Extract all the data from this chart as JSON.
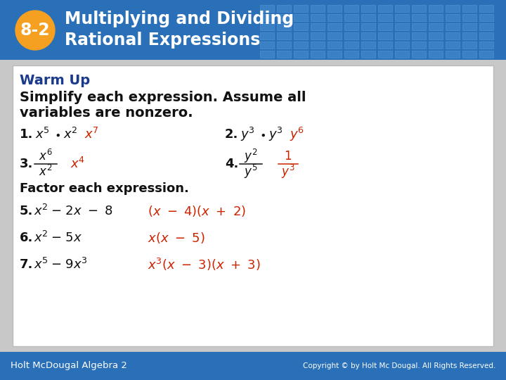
{
  "title_number": "8-2",
  "title_line1": "Multiplying and Dividing",
  "title_line2": "Rational Expressions",
  "header_bg_color": "#2970B8",
  "header_bg_color2": "#3A82C8",
  "badge_bg_color": "#F5A020",
  "badge_text_color": "#FFFFFF",
  "title_text_color": "#FFFFFF",
  "content_bg_color": "#FFFFFF",
  "content_border_color": "#BBBBBB",
  "blue_text_color": "#1A3A8C",
  "red_text_color": "#CC2200",
  "black_text_color": "#111111",
  "footer_bg_color": "#2970B8",
  "footer_left": "Holt McDougal Algebra 2",
  "footer_right": "Copyright © by Holt Mc Dougal. All Rights Reserved.",
  "warm_up_label": "Warm Up",
  "subtitle1": "Simplify each expression. Assume all",
  "subtitle2": "variables are nonzero.",
  "factor_label": "Factor each expression.",
  "outer_bg": "#C8C8C8"
}
